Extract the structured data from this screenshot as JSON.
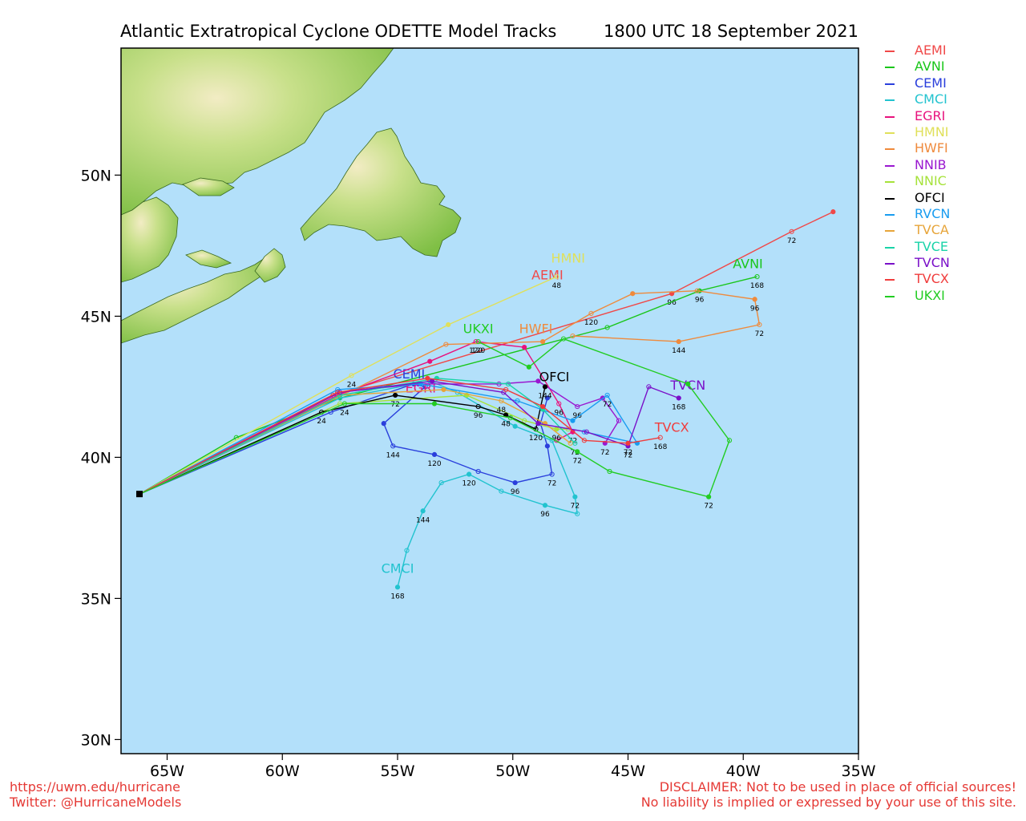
{
  "title_left": "Atlantic Extratropical Cyclone ODETTE Model Tracks",
  "title_right": "1800 UTC 18 September 2021",
  "x_ticks": [
    "65W",
    "60W",
    "55W",
    "50W",
    "45W",
    "40W",
    "35W"
  ],
  "y_ticks": [
    "50N",
    "45N",
    "40N",
    "35N",
    "30N"
  ],
  "footer_left": [
    "https://uwm.edu/hurricane",
    "Twitter: @HurricaneModels"
  ],
  "footer_right": [
    "DISCLAIMER: Not to be used in place of official sources!",
    "No liability is implied or expressed by your use of this site."
  ],
  "colors": {
    "ocean": "#b3e0fa",
    "land": "#8cc94f",
    "footer": "#e53935"
  },
  "map": {
    "lon_range": [
      -67.0,
      -35.0
    ],
    "lat_range": [
      29.5,
      54.5
    ],
    "origin": [
      -66.2,
      38.7
    ],
    "label_ticks": [
      24,
      48,
      72,
      96,
      120,
      144,
      168
    ]
  },
  "legend": [
    {
      "name": "AEMI",
      "color": "#f04848"
    },
    {
      "name": "AVNI",
      "color": "#19c619"
    },
    {
      "name": "CEMI",
      "color": "#2a3fdc"
    },
    {
      "name": "CMCI",
      "color": "#22c3cf"
    },
    {
      "name": "EGRI",
      "color": "#e8127d"
    },
    {
      "name": "HMNI",
      "color": "#e0e05a"
    },
    {
      "name": "HWFI",
      "color": "#ef8a3c"
    },
    {
      "name": "NNIB",
      "color": "#9a18d0"
    },
    {
      "name": "NNIC",
      "color": "#a6e23a"
    },
    {
      "name": "OFCI",
      "color": "#000000"
    },
    {
      "name": "RVCN",
      "color": "#199cf0"
    },
    {
      "name": "TVCA",
      "color": "#e7a53a"
    },
    {
      "name": "TVCE",
      "color": "#19d3a8"
    },
    {
      "name": "TVCN",
      "color": "#7a10c8"
    },
    {
      "name": "TVCX",
      "color": "#f03c3c"
    },
    {
      "name": "UKXI",
      "color": "#22cc22"
    }
  ],
  "tracks": [
    {
      "name": "AEMI",
      "color": "#f04848",
      "points": [
        [
          -66.2,
          38.7
        ],
        [
          -57.8,
          42.2
        ],
        [
          -43.1,
          45.8
        ],
        [
          -37.9,
          48.0
        ],
        [
          -36.1,
          48.7
        ]
      ],
      "label": "AEMI",
      "label_pos": [
        -48.5,
        46.3
      ],
      "hours": [
        [
          2,
          "96"
        ],
        [
          3,
          "72"
        ]
      ]
    },
    {
      "name": "AVNI",
      "color": "#19c619",
      "points": [
        [
          -66.2,
          38.7
        ],
        [
          -62.0,
          40.7
        ],
        [
          -57.5,
          42.1
        ],
        [
          -45.9,
          44.6
        ],
        [
          -41.9,
          45.9
        ],
        [
          -39.4,
          46.4
        ]
      ],
      "label": "AVNI",
      "label_pos": [
        -39.8,
        46.7
      ],
      "hours": [
        [
          4,
          "96"
        ],
        [
          5,
          "168"
        ]
      ]
    },
    {
      "name": "CEMI",
      "color": "#2a3fdc",
      "points": [
        [
          -66.2,
          38.7
        ],
        [
          -57.9,
          41.6
        ],
        [
          -54.3,
          42.6
        ],
        [
          -53.8,
          42.5
        ],
        [
          -55.6,
          41.2
        ],
        [
          -55.2,
          40.4
        ],
        [
          -53.4,
          40.1
        ],
        [
          -51.5,
          39.5
        ],
        [
          -49.9,
          39.1
        ],
        [
          -48.3,
          39.4
        ],
        [
          -48.5,
          40.4
        ],
        [
          -48.8,
          41.2
        ],
        [
          -48.5,
          42.1
        ]
      ],
      "label": "CEMI",
      "label_pos": [
        -54.5,
        42.8
      ],
      "hours": [
        [
          5,
          "144"
        ],
        [
          6,
          "120"
        ],
        [
          8,
          "96"
        ],
        [
          9,
          "72"
        ]
      ]
    },
    {
      "name": "CMCI",
      "color": "#22c3cf",
      "points": [
        [
          -66.2,
          38.7
        ],
        [
          -57.5,
          42.1
        ],
        [
          -53.6,
          42.7
        ],
        [
          -52.4,
          42.3
        ],
        [
          -49.9,
          41.1
        ],
        [
          -48.3,
          40.6
        ],
        [
          -47.3,
          38.6
        ],
        [
          -47.2,
          38.0
        ],
        [
          -48.6,
          38.3
        ],
        [
          -50.5,
          38.8
        ],
        [
          -51.9,
          39.4
        ],
        [
          -53.1,
          39.1
        ],
        [
          -53.9,
          38.1
        ],
        [
          -54.6,
          36.7
        ],
        [
          -55.0,
          35.4
        ]
      ],
      "label": "CMCI",
      "label_pos": [
        -55.0,
        35.9
      ],
      "hours": [
        [
          6,
          "72"
        ],
        [
          8,
          "96"
        ],
        [
          10,
          "120"
        ],
        [
          12,
          "144"
        ],
        [
          14,
          "168"
        ]
      ]
    },
    {
      "name": "EGRI",
      "color": "#e8127d",
      "points": [
        [
          -66.2,
          38.7
        ],
        [
          -57.6,
          42.2
        ],
        [
          -53.6,
          43.4
        ],
        [
          -51.6,
          44.1
        ],
        [
          -49.5,
          43.9
        ],
        [
          -48.0,
          41.9
        ],
        [
          -47.4,
          40.9
        ],
        [
          -48.1,
          40.6
        ]
      ],
      "label": "EGRI",
      "label_pos": [
        -54.0,
        42.3
      ],
      "hours": [
        [
          3,
          "120"
        ],
        [
          5,
          "96"
        ],
        [
          6,
          "72"
        ]
      ]
    },
    {
      "name": "HMNI",
      "color": "#e0e05a",
      "points": [
        [
          -66.2,
          38.7
        ],
        [
          -57.0,
          42.9
        ],
        [
          -52.8,
          44.7
        ],
        [
          -48.1,
          46.4
        ]
      ],
      "label": "HMNI",
      "label_pos": [
        -47.6,
        46.9
      ],
      "hours": [
        [
          1,
          "24"
        ],
        [
          3,
          "48"
        ]
      ]
    },
    {
      "name": "HWFI",
      "color": "#ef8a3c",
      "points": [
        [
          -66.2,
          38.7
        ],
        [
          -52.9,
          44.0
        ],
        [
          -48.7,
          44.1
        ],
        [
          -46.6,
          45.1
        ],
        [
          -44.8,
          45.8
        ],
        [
          -42.0,
          45.9
        ],
        [
          -39.5,
          45.6
        ],
        [
          -39.3,
          44.7
        ],
        [
          -42.8,
          44.1
        ],
        [
          -47.4,
          44.3
        ]
      ],
      "label": "HWFI",
      "label_pos": [
        -49.0,
        44.4
      ],
      "hours": [
        [
          3,
          "120"
        ],
        [
          6,
          "96"
        ],
        [
          7,
          "72"
        ],
        [
          8,
          "144"
        ]
      ]
    },
    {
      "name": "NNIB",
      "color": "#9a18d0",
      "points": [
        [
          -66.2,
          38.7
        ],
        [
          -57.6,
          42.3
        ],
        [
          -54.1,
          42.6
        ],
        [
          -50.6,
          42.6
        ],
        [
          -48.9,
          42.7
        ],
        [
          -47.2,
          41.8
        ],
        [
          -46.1,
          42.1
        ],
        [
          -45.4,
          41.3
        ],
        [
          -46.0,
          40.5
        ]
      ],
      "label": "",
      "label_pos": [
        0,
        0
      ],
      "hours": [
        [
          5,
          "96"
        ],
        [
          8,
          "72"
        ]
      ]
    },
    {
      "name": "NNIC",
      "color": "#a6e23a",
      "points": [
        [
          -66.2,
          38.7
        ],
        [
          -57.5,
          41.9
        ],
        [
          -52.0,
          42.2
        ],
        [
          -49.5,
          41.3
        ],
        [
          -48.1,
          41.0
        ],
        [
          -47.6,
          41.0
        ]
      ],
      "label": "",
      "label_pos": [
        0,
        0
      ],
      "hours": [
        [
          4,
          "96"
        ]
      ]
    },
    {
      "name": "OFCI",
      "color": "#000000",
      "points": [
        [
          -66.2,
          38.7
        ],
        [
          -58.3,
          41.6
        ],
        [
          -55.1,
          42.2
        ],
        [
          -51.5,
          41.8
        ],
        [
          -50.3,
          41.5
        ],
        [
          -49.0,
          41.0
        ],
        [
          -48.6,
          42.5
        ]
      ],
      "label": "OFCI",
      "label_pos": [
        -48.2,
        42.7
      ],
      "hours": [
        [
          1,
          "24"
        ],
        [
          2,
          "72"
        ],
        [
          3,
          "96"
        ],
        [
          4,
          "48"
        ],
        [
          5,
          "120"
        ],
        [
          6,
          "144"
        ]
      ]
    },
    {
      "name": "RVCN",
      "color": "#199cf0",
      "points": [
        [
          -66.2,
          38.7
        ],
        [
          -57.6,
          42.4
        ],
        [
          -54.0,
          42.6
        ],
        [
          -49.8,
          42.0
        ],
        [
          -47.4,
          41.3
        ],
        [
          -45.9,
          42.2
        ],
        [
          -44.6,
          40.5
        ],
        [
          -46.9,
          40.9
        ]
      ],
      "label": "",
      "label_pos": [
        0,
        0
      ],
      "hours": [
        [
          5,
          "72"
        ]
      ]
    },
    {
      "name": "TVCA",
      "color": "#e7a53a",
      "points": [
        [
          -66.2,
          38.7
        ],
        [
          -57.5,
          42.2
        ],
        [
          -53.0,
          42.4
        ],
        [
          -50.5,
          42.0
        ],
        [
          -48.6,
          41.2
        ],
        [
          -47.5,
          40.5
        ]
      ],
      "label": "",
      "label_pos": [
        0,
        0
      ],
      "hours": [
        [
          3,
          "48"
        ]
      ]
    },
    {
      "name": "TVCE",
      "color": "#19d3a8",
      "points": [
        [
          -66.2,
          38.7
        ],
        [
          -57.5,
          42.2
        ],
        [
          -53.3,
          42.8
        ],
        [
          -50.2,
          42.6
        ],
        [
          -48.7,
          41.7
        ],
        [
          -47.3,
          40.5
        ]
      ],
      "label": "",
      "label_pos": [
        0,
        0
      ],
      "hours": [
        [
          5,
          "72"
        ]
      ]
    },
    {
      "name": "TVCN",
      "color": "#7a10c8",
      "points": [
        [
          -66.2,
          38.7
        ],
        [
          -57.5,
          42.3
        ],
        [
          -53.5,
          42.7
        ],
        [
          -50.4,
          42.3
        ],
        [
          -48.9,
          41.2
        ],
        [
          -46.8,
          40.9
        ],
        [
          -45.0,
          40.4
        ],
        [
          -44.1,
          42.5
        ],
        [
          -42.8,
          42.1
        ]
      ],
      "label": "TVCN",
      "label_pos": [
        -42.4,
        42.4
      ],
      "hours": [
        [
          6,
          "72"
        ],
        [
          8,
          "168"
        ]
      ]
    },
    {
      "name": "TVCX",
      "color": "#f03c3c",
      "points": [
        [
          -66.2,
          38.7
        ],
        [
          -57.6,
          42.3
        ],
        [
          -53.7,
          42.8
        ],
        [
          -50.3,
          42.4
        ],
        [
          -48.7,
          41.8
        ],
        [
          -46.9,
          40.6
        ],
        [
          -45.0,
          40.5
        ],
        [
          -43.6,
          40.7
        ]
      ],
      "label": "TVCX",
      "label_pos": [
        -43.1,
        40.9
      ],
      "hours": [
        [
          6,
          "72"
        ],
        [
          7,
          "168"
        ]
      ]
    },
    {
      "name": "UKXI",
      "color": "#22cc22",
      "points": [
        [
          -66.2,
          38.7
        ],
        [
          -57.3,
          41.9
        ],
        [
          -53.4,
          41.9
        ],
        [
          -50.1,
          41.4
        ],
        [
          -47.2,
          40.2
        ],
        [
          -45.8,
          39.5
        ],
        [
          -41.5,
          38.6
        ],
        [
          -40.6,
          40.6
        ],
        [
          -42.4,
          42.6
        ],
        [
          -47.8,
          44.2
        ],
        [
          -49.3,
          43.2
        ],
        [
          -51.5,
          44.1
        ]
      ],
      "label": "UKXI",
      "label_pos": [
        -51.5,
        44.4
      ],
      "hours": [
        [
          1,
          "24"
        ],
        [
          4,
          "72"
        ],
        [
          6,
          "72"
        ],
        [
          11,
          "120"
        ]
      ]
    }
  ]
}
